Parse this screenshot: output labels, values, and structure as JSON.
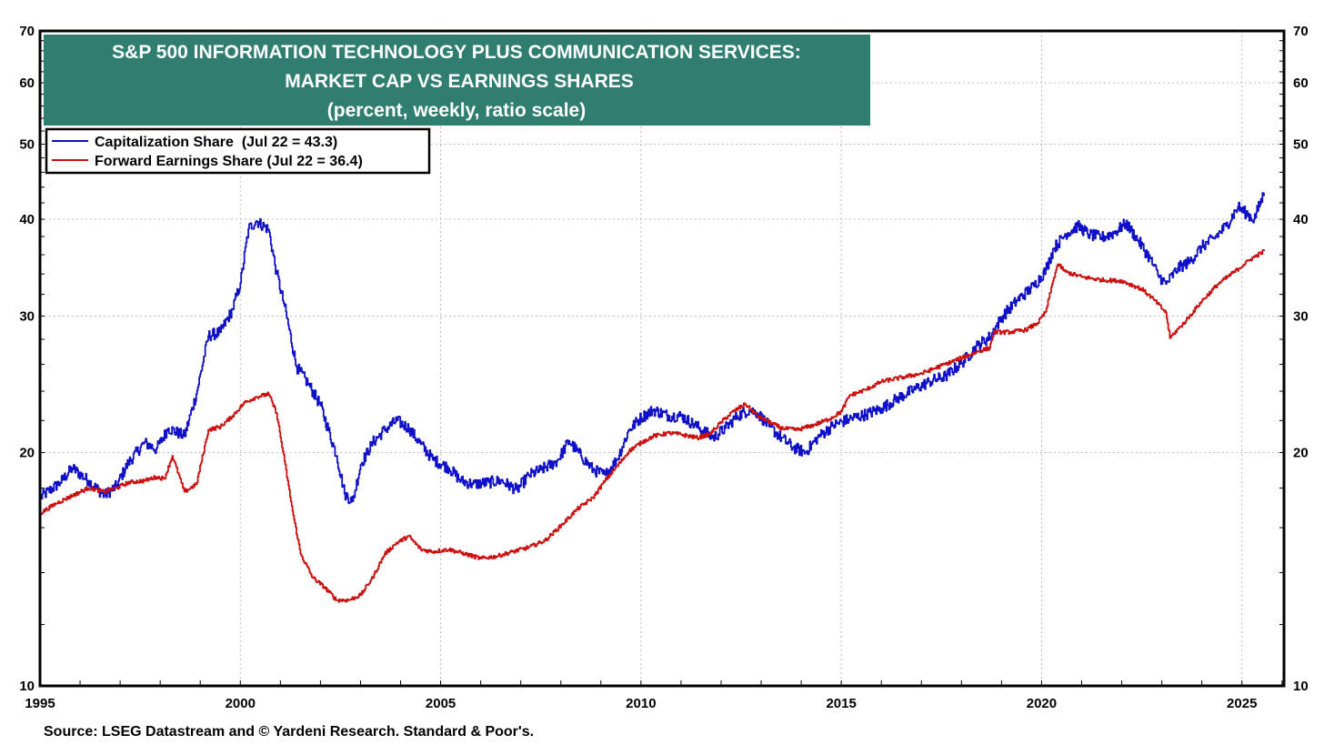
{
  "chart_data": {
    "type": "line",
    "title": [
      "S&P 500 INFORMATION TECHNOLOGY PLUS COMMUNICATION SERVICES:",
      "MARKET CAP VS EARNINGS SHARES",
      "(percent, weekly, ratio scale)"
    ],
    "scale": "log",
    "ylim": [
      10,
      70
    ],
    "y_ticks": [
      10,
      20,
      30,
      40,
      50,
      60,
      70
    ],
    "xlim": [
      1995,
      2026.05
    ],
    "x_ticks": [
      1995,
      2000,
      2005,
      2010,
      2015,
      2020,
      2025
    ],
    "grid": true,
    "legend_position": "top-left",
    "series": [
      {
        "name": "Capitalization Share  (Jul 22 = 43.3)",
        "color": "#1010c8",
        "x": [
          1995.0,
          1995.5,
          1995.8,
          1996.2,
          1996.6,
          1996.9,
          1997.2,
          1997.6,
          1997.9,
          1998.2,
          1998.6,
          1998.9,
          1999.2,
          1999.5,
          1999.8,
          2000.0,
          2000.2,
          2000.4,
          2000.7,
          2000.9,
          2001.1,
          2001.4,
          2001.7,
          2002.0,
          2002.4,
          2002.6,
          2002.8,
          2003.0,
          2003.3,
          2003.6,
          2003.9,
          2004.2,
          2004.5,
          2004.8,
          2005.2,
          2005.5,
          2005.8,
          2006.2,
          2006.5,
          2006.9,
          2007.2,
          2007.5,
          2007.9,
          2008.2,
          2008.5,
          2008.8,
          2009.1,
          2009.4,
          2009.7,
          2010.0,
          2010.3,
          2010.7,
          2011.0,
          2011.4,
          2011.8,
          2012.1,
          2012.4,
          2012.7,
          2012.9,
          2013.2,
          2013.5,
          2013.8,
          2014.1,
          2014.4,
          2014.8,
          2015.2,
          2015.6,
          2016.0,
          2016.4,
          2016.8,
          2017.2,
          2017.6,
          2018.0,
          2018.4,
          2018.7,
          2019.0,
          2019.4,
          2019.8,
          2020.1,
          2020.3,
          2020.6,
          2020.9,
          2021.2,
          2021.5,
          2021.8,
          2022.1,
          2022.4,
          2022.7,
          2022.9,
          2023.1,
          2023.4,
          2023.7,
          2024.0,
          2024.3,
          2024.6,
          2024.9,
          2025.1,
          2025.3,
          2025.55
        ],
        "y": [
          17.5,
          18.3,
          19.1,
          18.4,
          17.6,
          18.1,
          19.4,
          20.6,
          20.2,
          21.5,
          21.0,
          23.8,
          28.3,
          28.6,
          30.6,
          33.1,
          38.9,
          39.8,
          38.8,
          34.1,
          30.9,
          25.8,
          24.5,
          23.0,
          19.8,
          17.7,
          17.3,
          19.3,
          20.6,
          21.4,
          22.0,
          21.5,
          20.5,
          19.6,
          19.1,
          18.4,
          18.2,
          18.3,
          18.4,
          17.9,
          18.7,
          19.0,
          19.5,
          20.7,
          19.8,
          19.0,
          18.7,
          19.6,
          21.4,
          22.2,
          22.7,
          22.3,
          22.3,
          21.6,
          20.9,
          21.5,
          22.3,
          22.7,
          22.5,
          21.6,
          20.9,
          20.3,
          20.0,
          20.9,
          21.7,
          22.1,
          22.4,
          22.8,
          23.5,
          24.1,
          24.7,
          25.1,
          26.1,
          27.5,
          28.2,
          29.9,
          31.5,
          32.8,
          34.4,
          36.7,
          38.3,
          39.2,
          38.2,
          37.9,
          38.4,
          39.5,
          37.6,
          35.6,
          33.9,
          33.0,
          34.6,
          35.3,
          36.9,
          37.8,
          39.2,
          41.5,
          40.7,
          40.0,
          43.3
        ]
      },
      {
        "name": "Forward Earnings Share (Jul 22 = 36.4)",
        "color": "#cc1010",
        "x": [
          1995.0,
          1995.4,
          1995.8,
          1996.2,
          1996.6,
          1996.9,
          1997.2,
          1997.6,
          1997.9,
          1998.1,
          1998.3,
          1998.6,
          1998.9,
          1999.2,
          1999.5,
          1999.8,
          2000.1,
          2000.4,
          2000.7,
          2000.9,
          2001.1,
          2001.3,
          2001.5,
          2001.8,
          2002.1,
          2002.4,
          2002.7,
          2003.0,
          2003.3,
          2003.6,
          2003.9,
          2004.2,
          2004.5,
          2004.8,
          2005.2,
          2005.6,
          2006.0,
          2006.4,
          2006.8,
          2007.2,
          2007.6,
          2008.0,
          2008.4,
          2008.8,
          2009.1,
          2009.4,
          2009.7,
          2010.0,
          2010.3,
          2010.7,
          2011.0,
          2011.4,
          2011.7,
          2012.0,
          2012.3,
          2012.6,
          2012.9,
          2013.2,
          2013.5,
          2013.9,
          2014.3,
          2014.7,
          2015.0,
          2015.2,
          2015.6,
          2016.0,
          2016.5,
          2017.0,
          2017.5,
          2018.0,
          2018.4,
          2018.7,
          2018.8,
          2019.2,
          2019.6,
          2019.9,
          2020.1,
          2020.3,
          2020.4,
          2020.6,
          2021.0,
          2021.5,
          2022.0,
          2022.5,
          2022.8,
          2023.1,
          2023.2,
          2023.3,
          2023.6,
          2024.0,
          2024.4,
          2024.8,
          2025.2,
          2025.55
        ],
        "y": [
          16.7,
          17.2,
          17.6,
          18.0,
          17.8,
          18.0,
          18.3,
          18.4,
          18.6,
          18.5,
          19.8,
          17.8,
          18.2,
          21.4,
          21.6,
          22.3,
          23.2,
          23.6,
          23.8,
          22.5,
          19.5,
          16.8,
          14.8,
          13.8,
          13.4,
          12.9,
          12.9,
          13.1,
          13.8,
          14.8,
          15.3,
          15.6,
          15.0,
          14.9,
          15.0,
          14.8,
          14.6,
          14.7,
          14.9,
          15.1,
          15.4,
          16.1,
          16.9,
          17.5,
          18.4,
          19.2,
          20.1,
          20.6,
          21.0,
          21.2,
          21.1,
          20.9,
          21.1,
          21.9,
          22.6,
          23.1,
          22.3,
          21.9,
          21.5,
          21.4,
          21.7,
          22.1,
          22.6,
          23.7,
          24.1,
          24.7,
          25.0,
          25.3,
          25.9,
          26.5,
          27.0,
          27.3,
          28.6,
          28.6,
          28.8,
          29.4,
          30.4,
          33.6,
          35.0,
          34.2,
          33.7,
          33.4,
          33.3,
          32.5,
          31.5,
          30.3,
          28.1,
          28.5,
          29.6,
          31.4,
          33.0,
          34.2,
          35.5,
          36.4
        ]
      }
    ]
  },
  "source": "Source: LSEG Datastream and © Yardeni Research. Standard & Poor's."
}
